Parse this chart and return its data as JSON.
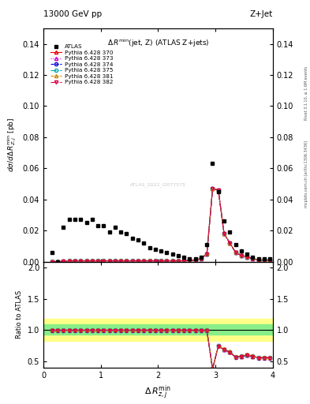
{
  "title_top": "13000 GeV pp",
  "title_right": "Z+Jet",
  "main_title": "Δ R^{min}(jet, Z) (ATLAS Z+jets)",
  "xlabel": "Δ R^{min}_{z,j}",
  "ylabel_main": "dσ/dΔ R^{min}_{Z,j} [pb]",
  "ylabel_ratio": "Ratio to ATLAS",
  "right_label_top": "Rivet 3.1.10, ≥ 1.6M events",
  "right_label_bot": "mcplots.cern.ch [arXiv:1306.3436]",
  "watermark": "ATLAS_2022_I2077575",
  "atlas_data_x": [
    0.15,
    0.25,
    0.35,
    0.45,
    0.55,
    0.65,
    0.75,
    0.85,
    0.95,
    1.05,
    1.15,
    1.25,
    1.35,
    1.45,
    1.55,
    1.65,
    1.75,
    1.85,
    1.95,
    2.05,
    2.15,
    2.25,
    2.35,
    2.45,
    2.55,
    2.65,
    2.75,
    2.85,
    2.95,
    3.05,
    3.15,
    3.25,
    3.35,
    3.45,
    3.55,
    3.65,
    3.75,
    3.85,
    3.95
  ],
  "atlas_data_y": [
    0.006,
    0.0,
    0.022,
    0.027,
    0.027,
    0.027,
    0.025,
    0.027,
    0.023,
    0.023,
    0.019,
    0.022,
    0.019,
    0.018,
    0.015,
    0.014,
    0.012,
    0.009,
    0.008,
    0.007,
    0.006,
    0.005,
    0.004,
    0.003,
    0.002,
    0.002,
    0.003,
    0.011,
    0.063,
    0.045,
    0.026,
    0.019,
    0.011,
    0.007,
    0.005,
    0.003,
    0.002,
    0.002,
    0.002
  ],
  "mc_y_base": [
    0.0,
    0.0,
    0.0003,
    0.0005,
    0.0005,
    0.0005,
    0.0005,
    0.0005,
    0.0005,
    0.0005,
    0.0005,
    0.0005,
    0.0005,
    0.0005,
    0.0005,
    0.0005,
    0.0005,
    0.0005,
    0.0005,
    0.0005,
    0.0005,
    0.0005,
    0.0005,
    0.0005,
    0.0008,
    0.001,
    0.002,
    0.005,
    0.047,
    0.046,
    0.018,
    0.012,
    0.006,
    0.004,
    0.003,
    0.002,
    0.001,
    0.001,
    0.001
  ],
  "ratio_y_base": [
    1.0,
    1.0,
    1.0,
    1.0,
    1.0,
    1.0,
    1.0,
    1.0,
    1.0,
    1.0,
    1.0,
    1.0,
    1.0,
    1.0,
    1.0,
    1.0,
    1.0,
    1.0,
    1.0,
    1.0,
    1.0,
    1.0,
    1.0,
    1.0,
    1.0,
    1.0,
    1.0,
    1.0,
    0.38,
    0.75,
    0.69,
    0.65,
    0.57,
    0.58,
    0.6,
    0.58,
    0.56,
    0.56,
    0.56
  ],
  "green_band_upper": 1.1,
  "green_band_lower": 0.93,
  "yellow_band_upper": 1.18,
  "yellow_band_lower": 0.83,
  "series": [
    {
      "label": "Pythia 6.428 370",
      "color": "#ee0000",
      "linestyle": "-",
      "marker": "^",
      "ms": 3
    },
    {
      "label": "Pythia 6.428 373",
      "color": "#cc00cc",
      "linestyle": ":",
      "marker": "^",
      "ms": 3
    },
    {
      "label": "Pythia 6.428 374",
      "color": "#0000dd",
      "linestyle": "--",
      "marker": "o",
      "ms": 3
    },
    {
      "label": "Pythia 6.428 375",
      "color": "#00aaaa",
      "linestyle": "-.",
      "marker": "o",
      "ms": 3
    },
    {
      "label": "Pythia 6.428 381",
      "color": "#cc8800",
      "linestyle": "--",
      "marker": "^",
      "ms": 3
    },
    {
      "label": "Pythia 6.428 382",
      "color": "#dd0044",
      "linestyle": "-.",
      "marker": "v",
      "ms": 3
    }
  ],
  "mc_offsets": [
    0.0,
    0.0001,
    -5e-05,
    5e-05,
    0.00015,
    -0.0001
  ],
  "ratio_offsets": [
    0.0,
    0.02,
    -0.01,
    0.01,
    0.03,
    -0.015
  ],
  "ylim_main": [
    0,
    0.15
  ],
  "ylim_ratio": [
    0.4,
    2.1
  ],
  "xlim": [
    0,
    4.0
  ],
  "yticks_main": [
    0.0,
    0.02,
    0.04,
    0.06,
    0.08,
    0.1,
    0.12,
    0.14
  ],
  "yticks_ratio": [
    0.5,
    1.0,
    1.5,
    2.0
  ],
  "xticks": [
    0,
    1,
    2,
    3,
    4
  ]
}
